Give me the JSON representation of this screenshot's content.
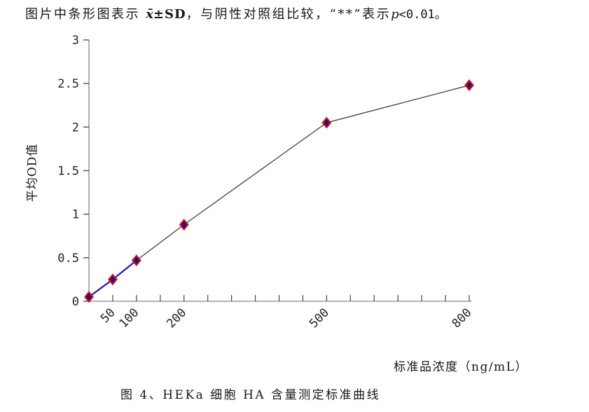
{
  "note": {
    "part1": "图片中条形图表示",
    "xbar": "x̄",
    "part2": "±SD",
    "part3": "，与阴性对照组比较，“**”表示",
    "p_symbol": "p",
    "part4": "<0.01。"
  },
  "chart_data": {
    "type": "line",
    "x": [
      0,
      50,
      100,
      200,
      500,
      800
    ],
    "values": [
      0.05,
      0.25,
      0.47,
      0.88,
      2.05,
      2.48
    ],
    "xlabel": "标准品浓度（ng/mL）",
    "ylabel": "平均OD值",
    "x_tick_labels": [
      "50",
      "100",
      "200",
      "500",
      "800"
    ],
    "x_minor_tick_step": 50,
    "y_ticks": [
      0,
      0.5,
      1,
      1.5,
      2,
      2.5,
      3
    ],
    "xlim": [
      0,
      800
    ],
    "ylim": [
      0,
      3
    ],
    "grid": false,
    "legend": "none",
    "marker": "diamond",
    "colors": {
      "marker_fill": "#14148c",
      "marker_edge": "#dd1111",
      "line_lower": "#2a2aa8",
      "line_upper": "#3d3d3d",
      "axis": "#9b9b9b",
      "tick": "#444444",
      "text": "#242424"
    }
  },
  "caption": "图 4、HEKa 细胞 HA 含量测定标准曲线"
}
